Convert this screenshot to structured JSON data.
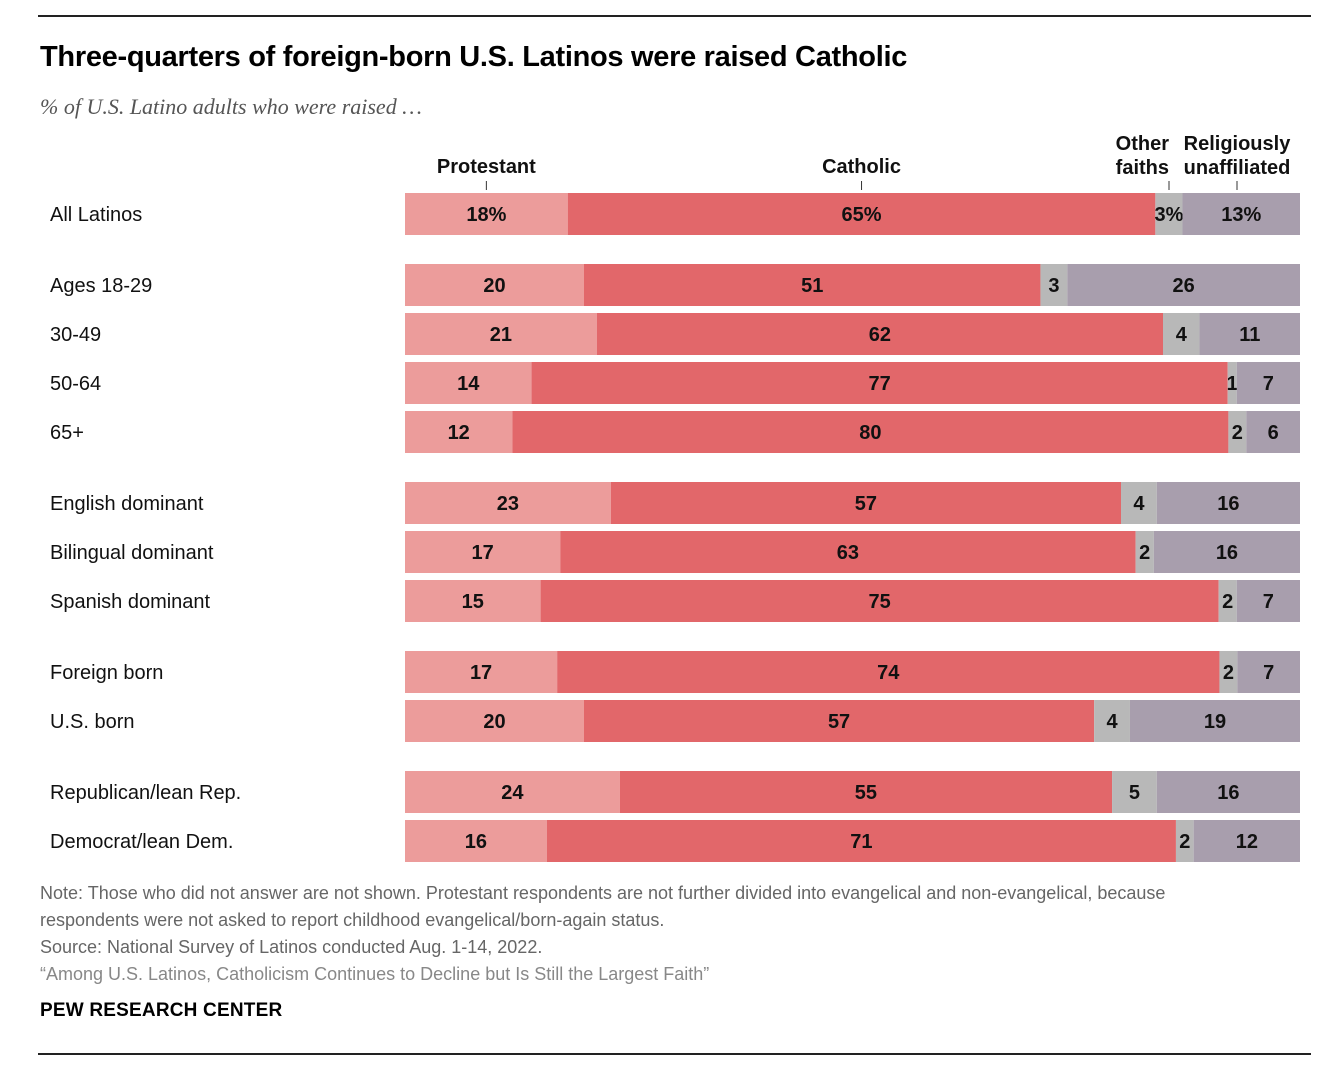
{
  "title": "Three-quarters of foreign-born U.S. Latinos were raised Catholic",
  "subtitle": "% of U.S. Latino adults who were raised …",
  "colors": {
    "protestant": "#ec9c9b",
    "catholic": "#e2676a",
    "other": "#b8b8b8",
    "unaffiliated": "#a89ead"
  },
  "chart_data": {
    "type": "bar",
    "orientation": "horizontal",
    "stacked": true,
    "xlim": [
      0,
      100
    ],
    "series": [
      {
        "name": "Protestant",
        "values": [
          18,
          20,
          21,
          14,
          12,
          23,
          17,
          15,
          17,
          20,
          24,
          16
        ]
      },
      {
        "name": "Catholic",
        "values": [
          65,
          51,
          62,
          77,
          80,
          57,
          63,
          75,
          74,
          57,
          55,
          71
        ]
      },
      {
        "name": "Other faiths",
        "values": [
          3,
          3,
          4,
          1,
          2,
          4,
          2,
          2,
          2,
          4,
          5,
          2
        ]
      },
      {
        "name": "Religiously unaffiliated",
        "values": [
          13,
          26,
          11,
          7,
          6,
          16,
          16,
          7,
          7,
          19,
          16,
          12
        ]
      }
    ],
    "categories": [
      "All Latinos",
      "Ages 18-29",
      "30-49",
      "50-64",
      "65+",
      "English dominant",
      "Bilingual dominant",
      "Spanish dominant",
      "Foreign born",
      "U.S. born",
      "Republican/lean Rep.",
      "Democrat/lean Dem."
    ],
    "groups": [
      [
        0
      ],
      [
        1,
        2,
        3,
        4
      ],
      [
        5,
        6,
        7
      ],
      [
        8,
        9
      ],
      [
        10,
        11
      ]
    ],
    "legend_headers": [
      "Protestant",
      "Catholic",
      "Other|faiths",
      "Religiously|unaffiliated"
    ],
    "first_row_labels": [
      "18%",
      "65%",
      "3%",
      "13%"
    ]
  },
  "notes": {
    "note": "Note: Those who did not answer are not shown. Protestant respondents are not further divided into evangelical and non-evangelical, because",
    "note2": "respondents were not asked to report childhood evangelical/born-again status.",
    "source": "Source: National Survey of Latinos conducted Aug. 1-14, 2022.",
    "report": "“Among U.S. Latinos, Catholicism Continues to Decline but Is Still the Largest Faith”"
  },
  "brand": "PEW RESEARCH CENTER"
}
